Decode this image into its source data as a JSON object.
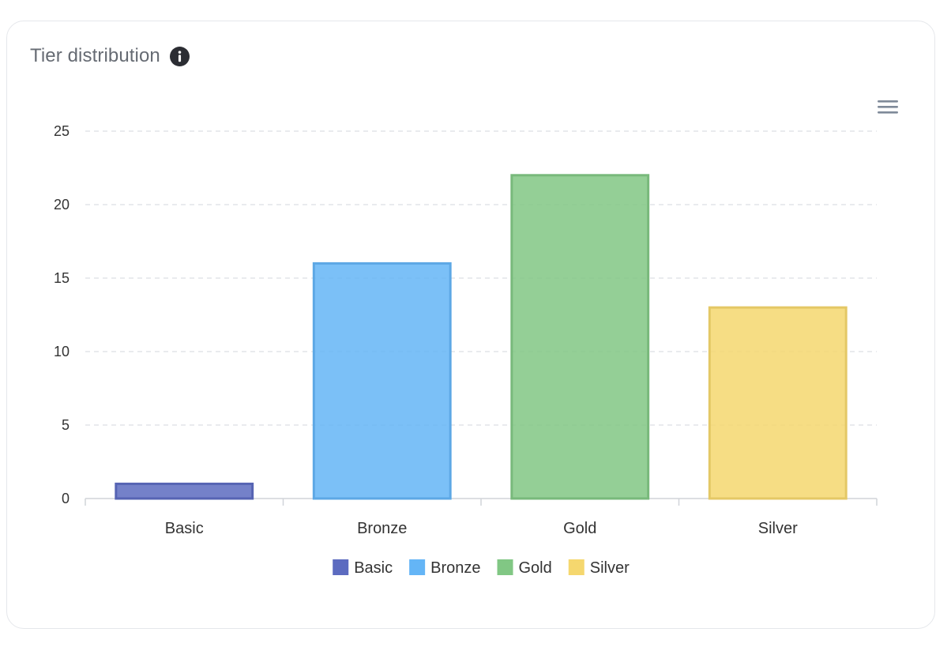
{
  "card": {
    "title": "Tier distribution",
    "info_icon": "info-circle-icon",
    "menu_icon": "hamburger-menu-icon"
  },
  "chart_data": {
    "type": "bar",
    "categories": [
      "Basic",
      "Bronze",
      "Gold",
      "Silver"
    ],
    "values": [
      1,
      16,
      22,
      13
    ],
    "colors": [
      "#5c6bc0",
      "#64b5f6",
      "#81c784",
      "#f5d76e"
    ],
    "title": "",
    "xlabel": "",
    "ylabel": "",
    "ylim": [
      0,
      25
    ],
    "yticks": [
      0,
      5,
      10,
      15,
      20,
      25
    ],
    "grid": true,
    "legend": {
      "position": "bottom-center",
      "entries": [
        "Basic",
        "Bronze",
        "Gold",
        "Silver"
      ]
    }
  }
}
